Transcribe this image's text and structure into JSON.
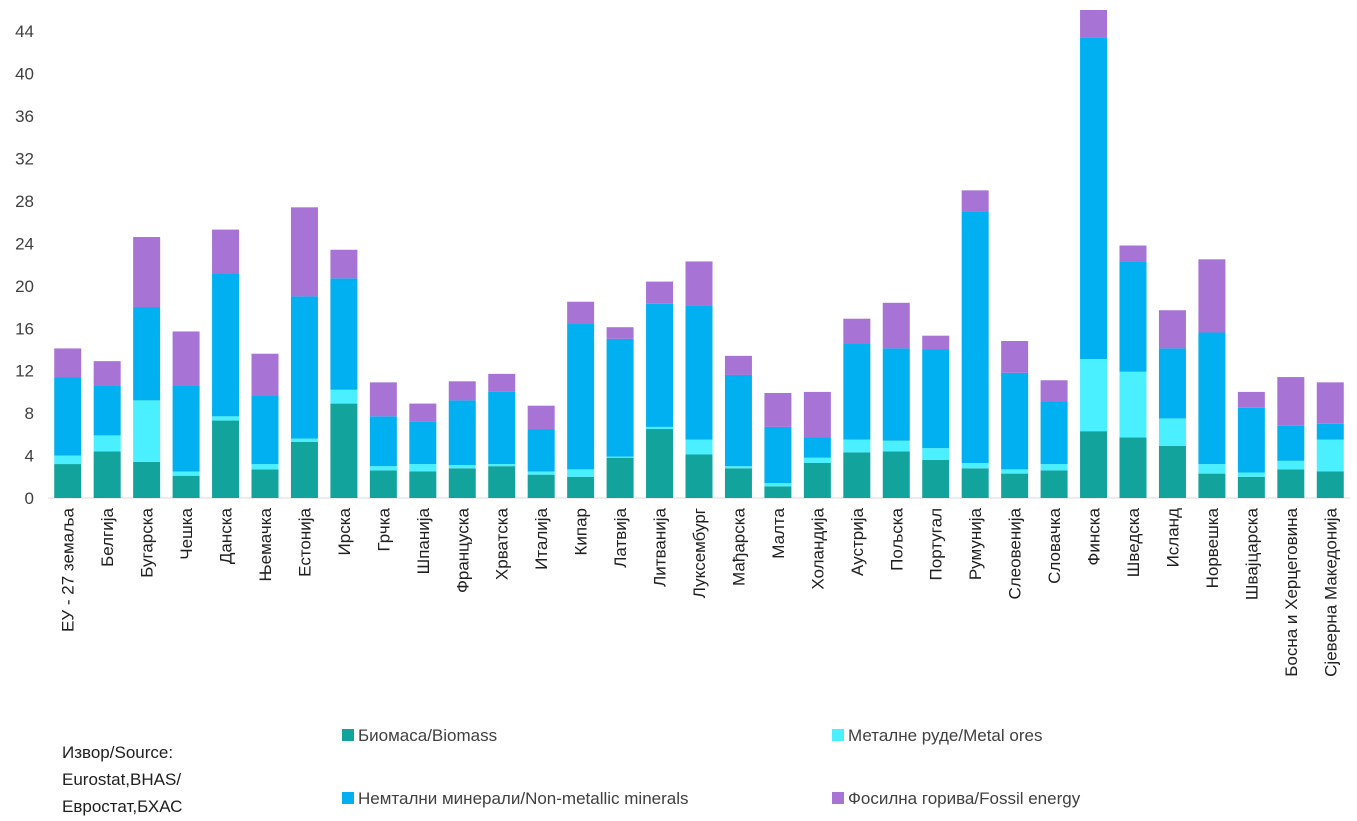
{
  "chart_data": {
    "type": "bar",
    "stacked": true,
    "categories": [
      "ЕУ - 27 земаља",
      "Белгија",
      "Бугарска",
      "Чешка",
      "Данска",
      "Њемачка",
      "Естонија",
      "Ирска",
      "Грчка",
      "Шпанија",
      "Француска",
      "Хрватска",
      "Италија",
      "Кипар",
      "Латвија",
      "Литванија",
      "Луксембург",
      "Мађарска",
      "Малта",
      "Холандија",
      "Аустрија",
      "Пољска",
      "Португал",
      "Румунија",
      "Слеовенија",
      "Словачка",
      "Финска",
      "Шведска",
      "Исланд",
      "Норвешка",
      "Швајцарска",
      "Босна и Херцеговина",
      "Сјеверна Македонија"
    ],
    "series": [
      {
        "name": "Биомаса/Biomass",
        "color": "#11a39c",
        "values": [
          3.2,
          4.4,
          3.4,
          2.1,
          7.3,
          2.7,
          5.3,
          8.9,
          2.6,
          2.5,
          2.8,
          3.0,
          2.2,
          2.0,
          3.8,
          6.5,
          4.1,
          2.8,
          1.1,
          3.3,
          4.3,
          4.4,
          3.6,
          2.8,
          2.3,
          2.6,
          6.3,
          5.7,
          4.9,
          2.3,
          2.0,
          2.7,
          2.5
        ]
      },
      {
        "name": "Металне руде/Metal ores",
        "color": "#4af0ff",
        "values": [
          0.8,
          1.5,
          5.8,
          0.4,
          0.4,
          0.5,
          0.3,
          1.3,
          0.4,
          0.7,
          0.3,
          0.2,
          0.3,
          0.7,
          0.1,
          0.2,
          1.4,
          0.2,
          0.3,
          0.5,
          1.2,
          1.0,
          1.1,
          0.5,
          0.4,
          0.6,
          6.8,
          6.2,
          2.6,
          0.9,
          0.4,
          0.8,
          3.0
        ]
      },
      {
        "name": "Немтални минерали/Non-metallic minerals",
        "color": "#00b0f0",
        "values": [
          7.4,
          4.7,
          8.8,
          8.1,
          13.5,
          6.5,
          13.4,
          10.5,
          4.7,
          4.0,
          6.1,
          6.8,
          4.0,
          13.7,
          11.1,
          11.6,
          12.6,
          8.6,
          5.3,
          1.9,
          9.1,
          8.7,
          9.3,
          23.7,
          9.1,
          5.9,
          30.3,
          10.4,
          6.6,
          12.4,
          6.1,
          3.3,
          1.5
        ]
      },
      {
        "name": "Фосилна горива/Fossil energy",
        "color": "#a774d6",
        "values": [
          2.7,
          2.3,
          6.6,
          5.1,
          4.1,
          3.9,
          8.4,
          2.7,
          3.2,
          1.7,
          1.8,
          1.7,
          2.2,
          2.1,
          1.1,
          2.1,
          4.2,
          1.8,
          3.2,
          4.3,
          2.3,
          4.3,
          1.3,
          2.0,
          3.0,
          2.0,
          2.6,
          1.5,
          3.6,
          6.9,
          1.5,
          4.6,
          3.9
        ]
      }
    ],
    "ylim": [
      0,
      46
    ],
    "yticks": [
      0,
      4,
      8,
      12,
      16,
      20,
      24,
      28,
      32,
      36,
      40,
      44
    ],
    "grid": false,
    "legend_position": "bottom"
  },
  "source": {
    "line1": "Извор/Source:",
    "line2": "Eurostat,BHAS/",
    "line3": "Евростат,БХАС"
  }
}
